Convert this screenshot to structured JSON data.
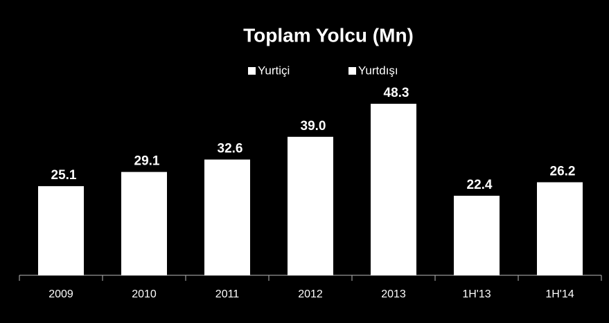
{
  "chart_data": {
    "type": "bar",
    "title": "Toplam Yolcu (Mn)",
    "legend": [
      {
        "name": "Yurtiçi",
        "color": "#ffffff"
      },
      {
        "name": "Yurtdışı",
        "color": "#ffffff"
      }
    ],
    "categories": [
      "2009",
      "2010",
      "2011",
      "2012",
      "2013",
      "1H'13",
      "1H'14"
    ],
    "values": [
      25.1,
      29.1,
      32.6,
      39,
      48.3,
      22.4,
      26.2
    ],
    "value_labels": [
      "25.1",
      "29.1",
      "32.6",
      "39.0",
      "48.3",
      "22.4",
      "26.2"
    ],
    "color": "#ffffff",
    "ylim": [
      0,
      60
    ]
  }
}
